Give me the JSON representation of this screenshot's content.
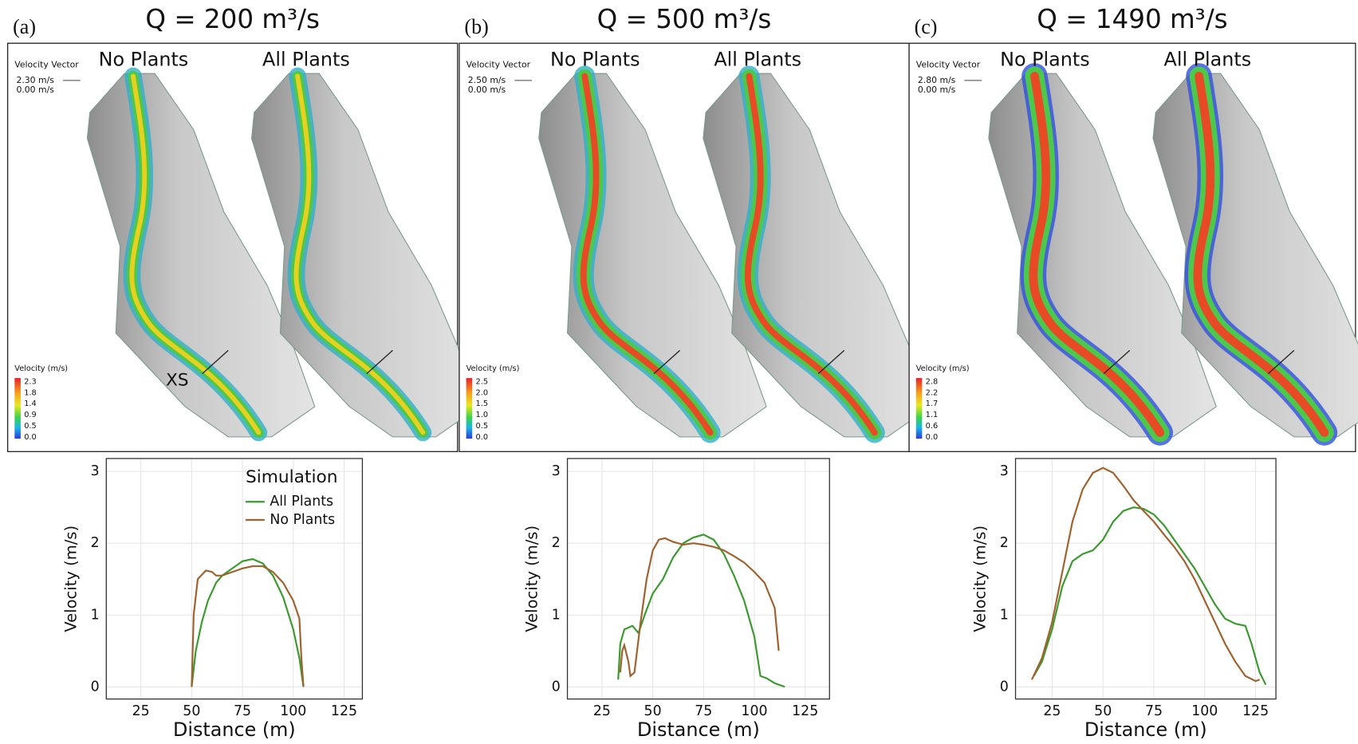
{
  "panels": [
    {
      "label": "(a)",
      "title": "Q = 200 m³/s",
      "vector_title": "Velocity Vector",
      "vector_max": "2.30 m/s",
      "vector_min": "0.00 m/s",
      "left_map": "No Plants",
      "right_map": "All Plants",
      "colorbar_title": "Velocity (m/s)",
      "colorbar_ticks": [
        "2.3",
        "1.8",
        "1.4",
        "0.9",
        "0.5",
        "0.0"
      ],
      "xs_label": "XS"
    },
    {
      "label": "(b)",
      "title": "Q = 500 m³/s",
      "vector_title": "Velocity Vector",
      "vector_max": "2.50 m/s",
      "vector_min": "0.00 m/s",
      "left_map": "No Plants",
      "right_map": "All Plants",
      "colorbar_title": "Velocity (m/s)",
      "colorbar_ticks": [
        "2.5",
        "2.0",
        "1.5",
        "1.0",
        "0.5",
        "0.0"
      ]
    },
    {
      "label": "(c)",
      "title": "Q = 1490 m³/s",
      "vector_title": "Velocity Vector",
      "vector_max": "2.80 m/s",
      "vector_min": "0.00 m/s",
      "left_map": "No Plants",
      "right_map": "All Plants",
      "colorbar_title": "Velocity (m/s)",
      "colorbar_ticks": [
        "2.8",
        "2.2",
        "1.7",
        "1.1",
        "0.6",
        "0.0"
      ]
    }
  ],
  "chart_data": [
    {
      "type": "line",
      "xlabel": "Distance (m)",
      "ylabel": "Velocity (m/s)",
      "xlim": [
        8,
        134
      ],
      "ylim": [
        -0.17,
        3.18
      ],
      "xticks": [
        25,
        50,
        75,
        100,
        125
      ],
      "yticks": [
        0,
        1,
        2,
        3
      ],
      "grid": true,
      "legend": "top-right",
      "legend_title": "Simulation",
      "series": [
        {
          "name": "All Plants",
          "color": "#3a9a2e",
          "x": [
            50,
            52,
            55,
            58,
            62,
            65,
            70,
            75,
            80,
            85,
            90,
            95,
            100,
            103,
            105
          ],
          "values": [
            0,
            0.5,
            0.9,
            1.2,
            1.45,
            1.55,
            1.65,
            1.75,
            1.78,
            1.72,
            1.55,
            1.25,
            0.8,
            0.4,
            0
          ]
        },
        {
          "name": "No Plants",
          "color": "#a0622d",
          "x": [
            50,
            51,
            53,
            57,
            60,
            62,
            65,
            70,
            75,
            80,
            85,
            90,
            95,
            100,
            103,
            104,
            105
          ],
          "values": [
            0,
            1.0,
            1.5,
            1.62,
            1.6,
            1.55,
            1.55,
            1.6,
            1.65,
            1.68,
            1.68,
            1.6,
            1.45,
            1.2,
            0.95,
            0.4,
            0
          ]
        }
      ]
    },
    {
      "type": "line",
      "xlabel": "Distance (m)",
      "ylabel": "Velocity (m/s)",
      "xlim": [
        8,
        137
      ],
      "ylim": [
        -0.17,
        3.18
      ],
      "xticks": [
        25,
        50,
        75,
        100,
        125
      ],
      "yticks": [
        0,
        1,
        2,
        3
      ],
      "grid": true,
      "legend": "none",
      "series": [
        {
          "name": "All Plants",
          "color": "#3a9a2e",
          "x": [
            33,
            34,
            36,
            40,
            43,
            46,
            50,
            55,
            60,
            65,
            70,
            75,
            80,
            85,
            90,
            95,
            100,
            103,
            106,
            110,
            115
          ],
          "values": [
            0.1,
            0.6,
            0.8,
            0.85,
            0.75,
            1.0,
            1.3,
            1.5,
            1.8,
            2.0,
            2.08,
            2.12,
            2.05,
            1.85,
            1.55,
            1.2,
            0.7,
            0.15,
            0.12,
            0.05,
            0
          ]
        },
        {
          "name": "No Plants",
          "color": "#a0622d",
          "x": [
            34,
            35,
            36,
            38,
            39,
            41,
            44,
            47,
            50,
            53,
            56,
            60,
            65,
            70,
            75,
            80,
            85,
            90,
            95,
            100,
            105,
            110,
            112
          ],
          "values": [
            0.2,
            0.5,
            0.58,
            0.35,
            0.15,
            0.2,
            0.9,
            1.5,
            1.9,
            2.05,
            2.07,
            2.02,
            1.98,
            2.0,
            1.98,
            1.95,
            1.9,
            1.82,
            1.73,
            1.6,
            1.45,
            1.1,
            0.5
          ]
        }
      ]
    },
    {
      "type": "line",
      "xlabel": "Distance (m)",
      "ylabel": "Velocity (m/s)",
      "xlim": [
        7,
        135
      ],
      "ylim": [
        -0.17,
        3.18
      ],
      "xticks": [
        25,
        50,
        75,
        100,
        125
      ],
      "yticks": [
        0,
        1,
        2,
        3
      ],
      "grid": true,
      "legend": "none",
      "series": [
        {
          "name": "All Plants",
          "color": "#3a9a2e",
          "x": [
            16,
            20,
            25,
            30,
            35,
            40,
            45,
            50,
            55,
            60,
            65,
            70,
            75,
            80,
            85,
            90,
            95,
            100,
            105,
            110,
            115,
            120,
            123,
            127,
            130
          ],
          "values": [
            0.15,
            0.35,
            0.8,
            1.4,
            1.75,
            1.85,
            1.9,
            2.05,
            2.3,
            2.45,
            2.5,
            2.48,
            2.4,
            2.25,
            2.05,
            1.85,
            1.65,
            1.4,
            1.15,
            0.95,
            0.88,
            0.85,
            0.6,
            0.2,
            0.03
          ]
        },
        {
          "name": "No Plants",
          "color": "#a0622d",
          "x": [
            15,
            20,
            25,
            30,
            35,
            40,
            45,
            50,
            55,
            60,
            65,
            70,
            75,
            80,
            85,
            90,
            95,
            100,
            105,
            110,
            115,
            120,
            125,
            127
          ],
          "values": [
            0.1,
            0.4,
            0.9,
            1.6,
            2.3,
            2.75,
            2.98,
            3.05,
            2.98,
            2.8,
            2.6,
            2.45,
            2.3,
            2.12,
            1.95,
            1.75,
            1.5,
            1.2,
            0.9,
            0.6,
            0.35,
            0.15,
            0.08,
            0.1
          ]
        }
      ]
    }
  ]
}
